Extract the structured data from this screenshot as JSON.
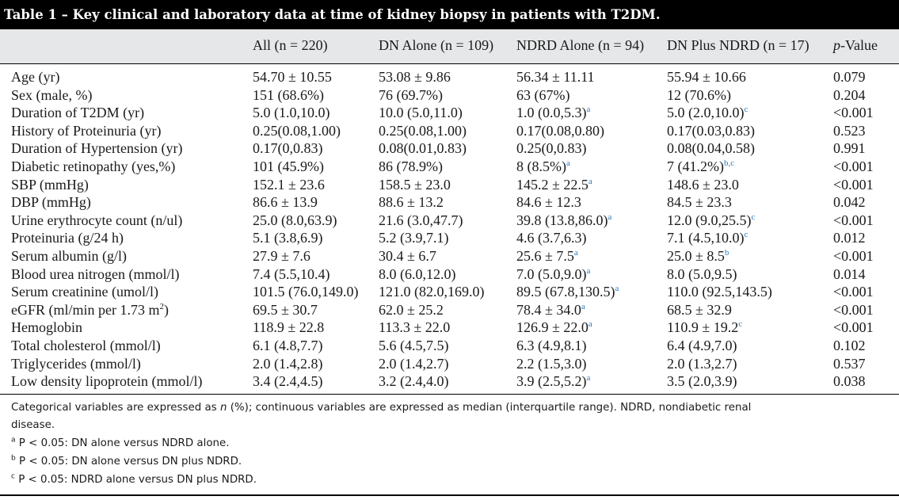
{
  "title": "Table 1 – Key clinical and laboratory data at time of kidney biopsy in patients with T2DM.",
  "columns": [
    "All (n = 220)",
    "DN Alone (n = 109)",
    "NDRD Alone (n = 94)",
    "DN Plus NDRD (n = 17)"
  ],
  "pvalue_header": {
    "italic": "p",
    "rest": "-Value"
  },
  "rows": [
    {
      "label": "Age (yr)",
      "all": "54.70 ± 10.55",
      "dn": "53.08 ± 9.86",
      "ndrd": "56.34 ± 11.11",
      "ndrd_sup": "",
      "plus": "55.94 ± 10.66",
      "plus_sup": "",
      "p": "0.079"
    },
    {
      "label": "Sex (male, %)",
      "all": "151 (68.6%)",
      "dn": "76 (69.7%)",
      "ndrd": "63 (67%)",
      "ndrd_sup": "",
      "plus": "12 (70.6%)",
      "plus_sup": "",
      "p": "0.204"
    },
    {
      "label": "Duration of T2DM (yr)",
      "all": "5.0 (1.0,10.0)",
      "dn": "10.0 (5.0,11.0)",
      "ndrd": "1.0 (0.0,5.3)",
      "ndrd_sup": "a",
      "plus": "5.0 (2.0,10.0)",
      "plus_sup": "c",
      "p": "<0.001"
    },
    {
      "label": "History of Proteinuria (yr)",
      "all": "0.25(0.08,1.00)",
      "dn": "0.25(0.08,1.00)",
      "ndrd": "0.17(0.08,0.80)",
      "ndrd_sup": "",
      "plus": "0.17(0.03,0.83)",
      "plus_sup": "",
      "p": "0.523"
    },
    {
      "label": "Duration of Hypertension (yr)",
      "all": "0.17(0,0.83)",
      "dn": "0.08(0.01,0.83)",
      "ndrd": "0.25(0,0.83)",
      "ndrd_sup": "",
      "plus": "0.08(0.04,0.58)",
      "plus_sup": "",
      "p": "0.991"
    },
    {
      "label": "Diabetic retinopathy (yes,%)",
      "all": "101 (45.9%)",
      "dn": "86 (78.9%)",
      "ndrd": "8 (8.5%)",
      "ndrd_sup": "a",
      "plus": "7 (41.2%)",
      "plus_sup": "b,c",
      "p": "<0.001"
    },
    {
      "label": "SBP (mmHg)",
      "all": "152.1 ± 23.6",
      "dn": "158.5 ± 23.0",
      "ndrd": "145.2 ± 22.5",
      "ndrd_sup": "a",
      "plus": "148.6 ± 23.0",
      "plus_sup": "",
      "p": "<0.001"
    },
    {
      "label": "DBP (mmHg)",
      "all": "86.6 ± 13.9",
      "dn": "88.6 ± 13.2",
      "ndrd": "84.6 ± 12.3",
      "ndrd_sup": "",
      "plus": "84.5 ± 23.3",
      "plus_sup": "",
      "p": "0.042"
    },
    {
      "label": "Urine erythrocyte count (n/ul)",
      "all": "25.0 (8.0,63.9)",
      "dn": "21.6 (3.0,47.7)",
      "ndrd": "39.8 (13.8,86.0)",
      "ndrd_sup": "a",
      "plus": "12.0 (9.0,25.5)",
      "plus_sup": "c",
      "p": "<0.001"
    },
    {
      "label": "Proteinuria (g/24 h)",
      "all": "5.1 (3.8,6.9)",
      "dn": "5.2 (3.9,7.1)",
      "ndrd": "4.6 (3.7,6.3)",
      "ndrd_sup": "",
      "plus": "7.1 (4.5,10.0)",
      "plus_sup": "c",
      "p": "0.012"
    },
    {
      "label": "Serum albumin (g/l)",
      "all": "27.9 ± 7.6",
      "dn": "30.4 ± 6.7",
      "ndrd": "25.6 ± 7.5",
      "ndrd_sup": "a",
      "plus": "25.0 ± 8.5",
      "plus_sup": "b",
      "p": "<0.001"
    },
    {
      "label": "Blood urea nitrogen (mmol/l)",
      "all": "7.4 (5.5,10.4)",
      "dn": "8.0 (6.0,12.0)",
      "ndrd": "7.0 (5.0,9.0)",
      "ndrd_sup": "a",
      "plus": "8.0 (5.0,9.5)",
      "plus_sup": "",
      "p": "0.014"
    },
    {
      "label": "Serum creatinine (umol/l)",
      "all": "101.5 (76.0,149.0)",
      "dn": "121.0 (82.0,169.0)",
      "ndrd": "89.5 (67.8,130.5)",
      "ndrd_sup": "a",
      "plus": "110.0 (92.5,143.5)",
      "plus_sup": "",
      "p": "<0.001"
    },
    {
      "label": "eGFR (ml/min per 1.73 m",
      "label_sup": "2",
      "label_tail": ")",
      "all": "69.5 ± 30.7",
      "dn": "62.0 ± 25.2",
      "ndrd": "78.4 ± 34.0",
      "ndrd_sup": "a",
      "plus": "68.5 ± 32.9",
      "plus_sup": "",
      "p": "<0.001"
    },
    {
      "label": "Hemoglobin",
      "all": "118.9 ± 22.8",
      "dn": "113.3 ± 22.0",
      "ndrd": "126.9 ± 22.0",
      "ndrd_sup": "a",
      "plus": "110.9 ± 19.2",
      "plus_sup": "c",
      "p": "<0.001"
    },
    {
      "label": "Total cholesterol (mmol/l)",
      "all": "6.1 (4.8,7.7)",
      "dn": "5.6 (4.5,7.5)",
      "ndrd": "6.3 (4.9,8.1)",
      "ndrd_sup": "",
      "plus": "6.4 (4.9,7.0)",
      "plus_sup": "",
      "p": "0.102"
    },
    {
      "label": "Triglycerides (mmol/l)",
      "all": "2.0 (1.4,2.8)",
      "dn": "2.0 (1.4,2.7)",
      "ndrd": "2.2 (1.5,3.0)",
      "ndrd_sup": "",
      "plus": "2.0 (1.3,2.7)",
      "plus_sup": "",
      "p": "0.537"
    },
    {
      "label": "Low density lipoprotein (mmol/l)",
      "all": "3.4 (2.4,4.5)",
      "dn": "3.2 (2.4,4.0)",
      "ndrd": "3.9 (2.5,5.2)",
      "ndrd_sup": "a",
      "plus": "3.5 (2.0,3.9)",
      "plus_sup": "",
      "p": "0.038"
    }
  ],
  "footnote": {
    "part1": "Categorical variables are expressed as ",
    "italic": "n",
    "part2": " (%); continuous variables are expressed as median (interquartile range). NDRD, nondiabetic renal",
    "line2": "disease.",
    "notes": [
      {
        "mark": "a",
        "text": "P < 0.05: DN alone versus NDRD alone."
      },
      {
        "mark": "b",
        "text": "P < 0.05: DN alone versus DN plus NDRD."
      },
      {
        "mark": "c",
        "text": "P < 0.05: NDRD alone versus DN plus NDRD."
      }
    ]
  }
}
